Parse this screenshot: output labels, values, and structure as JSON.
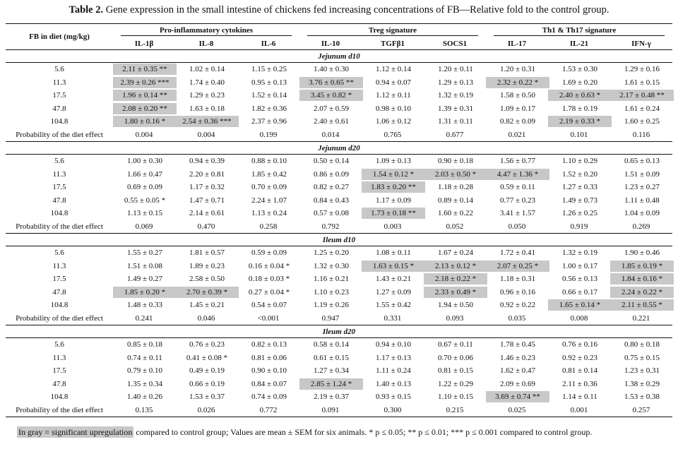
{
  "caption": {
    "label": "Table 2.",
    "text": " Gene expression in the small intestine of chickens fed increasing concentrations of FB—Relative fold to the control group."
  },
  "header": {
    "row_label": "FB in diet (mg/kg)",
    "groups": [
      "Pro-inflammatory cytokines",
      "Treg signature",
      "Th1 & Th17 signature"
    ],
    "genes": [
      "IL-1β",
      "IL-8",
      "IL-6",
      "IL-10",
      "TGFβ1",
      "SOCS1",
      "IL-17",
      "IL-21",
      "IFN-γ"
    ]
  },
  "sections": [
    {
      "title": "Jejunum d10",
      "rows": [
        {
          "dose": "5.6",
          "cells": [
            [
              "2.11 ± 0.35 **",
              true
            ],
            [
              "1.02 ± 0.14",
              false
            ],
            [
              "1.15 ± 0.25",
              false
            ],
            [
              "1.40 ± 0.30",
              false
            ],
            [
              "1.12 ± 0.14",
              false
            ],
            [
              "1.20 ± 0.11",
              false
            ],
            [
              "1.20 ± 0.31",
              false
            ],
            [
              "1.53 ± 0.30",
              false
            ],
            [
              "1.29 ± 0.16",
              false
            ]
          ]
        },
        {
          "dose": "11.3",
          "cells": [
            [
              "2.39 ± 0.26 ***",
              true
            ],
            [
              "1.74 ± 0.40",
              false
            ],
            [
              "0.95 ± 0.13",
              false
            ],
            [
              "3.76 ± 0.65 **",
              true
            ],
            [
              "0.94 ± 0.07",
              false
            ],
            [
              "1.29 ± 0.13",
              false
            ],
            [
              "2.32 ± 0.22 *",
              true
            ],
            [
              "1.69 ± 0.20",
              false
            ],
            [
              "1.61 ± 0.15",
              false
            ]
          ]
        },
        {
          "dose": "17.5",
          "cells": [
            [
              "1.96 ± 0.14 **",
              true
            ],
            [
              "1.29 ± 0.23",
              false
            ],
            [
              "1.52 ± 0.14",
              false
            ],
            [
              "3.45 ± 0.82 *",
              true
            ],
            [
              "1.12 ± 0.11",
              false
            ],
            [
              "1.32 ± 0.19",
              false
            ],
            [
              "1.58 ± 0.50",
              false
            ],
            [
              "2.40 ± 0.63 *",
              true
            ],
            [
              "2.17 ± 0.48 **",
              true
            ]
          ]
        },
        {
          "dose": "47.8",
          "cells": [
            [
              "2.08 ± 0.20 **",
              true
            ],
            [
              "1.63 ± 0.18",
              false
            ],
            [
              "1.82 ± 0.36",
              false
            ],
            [
              "2.07 ± 0.59",
              false
            ],
            [
              "0.98 ± 0.10",
              false
            ],
            [
              "1.39 ± 0.31",
              false
            ],
            [
              "1.09 ± 0.17",
              false
            ],
            [
              "1.78 ± 0.19",
              false
            ],
            [
              "1.61 ± 0.24",
              false
            ]
          ]
        },
        {
          "dose": "104.8",
          "cells": [
            [
              "1.80 ± 0.16 *",
              true
            ],
            [
              "2.54 ± 0.36 ***",
              true
            ],
            [
              "2.37 ± 0.96",
              false
            ],
            [
              "2.40 ± 0.61",
              false
            ],
            [
              "1.06 ± 0.12",
              false
            ],
            [
              "1.31 ± 0.11",
              false
            ],
            [
              "0.82 ± 0.09",
              false
            ],
            [
              "2.19 ± 0.33 *",
              true
            ],
            [
              "1.60 ± 0.25",
              false
            ]
          ]
        }
      ],
      "prob_label": "Probability of the diet effect",
      "prob": [
        "0.004",
        "0.004",
        "0.199",
        "0.014",
        "0.765",
        "0.677",
        "0.021",
        "0.101",
        "0.116"
      ]
    },
    {
      "title": "Jejunum d20",
      "rows": [
        {
          "dose": "5.6",
          "cells": [
            [
              "1.00 ± 0.30",
              false
            ],
            [
              "0.94 ± 0.39",
              false
            ],
            [
              "0.88 ± 0.10",
              false
            ],
            [
              "0.50 ± 0.14",
              false
            ],
            [
              "1.09 ± 0.13",
              false
            ],
            [
              "0.90 ± 0.18",
              false
            ],
            [
              "1.56 ± 0.77",
              false
            ],
            [
              "1.10 ± 0.29",
              false
            ],
            [
              "0.65 ± 0.13",
              false
            ]
          ]
        },
        {
          "dose": "11.3",
          "cells": [
            [
              "1.66 ± 0.47",
              false
            ],
            [
              "2.20 ± 0.81",
              false
            ],
            [
              "1.85 ± 0.42",
              false
            ],
            [
              "0.86 ± 0.09",
              false
            ],
            [
              "1.54 ± 0.12 *",
              true
            ],
            [
              "2.03 ± 0.50 *",
              true
            ],
            [
              "4.47 ± 1.36 *",
              true
            ],
            [
              "1.52 ± 0.20",
              false
            ],
            [
              "1.51 ± 0.09",
              false
            ]
          ]
        },
        {
          "dose": "17.5",
          "cells": [
            [
              "0.69 ± 0.09",
              false
            ],
            [
              "1.17 ± 0.32",
              false
            ],
            [
              "0.70 ± 0.09",
              false
            ],
            [
              "0.82 ± 0.27",
              false
            ],
            [
              "1.83 ± 0.20 **",
              true
            ],
            [
              "1.18 ± 0.28",
              false
            ],
            [
              "0.59 ± 0.11",
              false
            ],
            [
              "1.27 ± 0.33",
              false
            ],
            [
              "1.23 ± 0.27",
              false
            ]
          ]
        },
        {
          "dose": "47.8",
          "cells": [
            [
              "0.55 ± 0.05 *",
              false
            ],
            [
              "1.47 ± 0.71",
              false
            ],
            [
              "2.24 ± 1.07",
              false
            ],
            [
              "0.84 ± 0.43",
              false
            ],
            [
              "1.17 ± 0.09",
              false
            ],
            [
              "0.89 ± 0.14",
              false
            ],
            [
              "0.77 ± 0.23",
              false
            ],
            [
              "1.49 ± 0.73",
              false
            ],
            [
              "1.11 ± 0.48",
              false
            ]
          ]
        },
        {
          "dose": "104.8",
          "cells": [
            [
              "1.13 ± 0.15",
              false
            ],
            [
              "2.14 ± 0.61",
              false
            ],
            [
              "1.13 ± 0.24",
              false
            ],
            [
              "0.57 ± 0.08",
              false
            ],
            [
              "1.73 ± 0.18 **",
              true
            ],
            [
              "1.60 ± 0.22",
              false
            ],
            [
              "3.41 ± 1.57",
              false
            ],
            [
              "1.26 ± 0.25",
              false
            ],
            [
              "1.04 ± 0.09",
              false
            ]
          ]
        }
      ],
      "prob_label": "Probability of the diet effect",
      "prob": [
        "0.069",
        "0.470",
        "0.258",
        "0.792",
        "0.003",
        "0.052",
        "0.050",
        "0.919",
        "0.269"
      ]
    },
    {
      "title": "Ileum d10",
      "rows": [
        {
          "dose": "5.6",
          "cells": [
            [
              "1.55 ± 0.27",
              false
            ],
            [
              "1.81 ± 0.57",
              false
            ],
            [
              "0.59 ± 0.09",
              false
            ],
            [
              "1.25 ± 0.20",
              false
            ],
            [
              "1.08 ± 0.11",
              false
            ],
            [
              "1.67 ± 0.24",
              false
            ],
            [
              "1.72 ± 0.41",
              false
            ],
            [
              "1.32 ± 0.19",
              false
            ],
            [
              "1.90 ± 0.46",
              false
            ]
          ]
        },
        {
          "dose": "11.3",
          "cells": [
            [
              "1.51 ± 0.08",
              false
            ],
            [
              "1.89 ± 0.23",
              false
            ],
            [
              "0.16 ± 0.04 *",
              false
            ],
            [
              "1.32 ± 0.30",
              false
            ],
            [
              "1.63 ± 0.15 *",
              true
            ],
            [
              "2.13 ± 0.12 *",
              true
            ],
            [
              "2.07 ± 0.25 *",
              true
            ],
            [
              "1.00 ± 0.17",
              false
            ],
            [
              "1.85 ± 0.19 *",
              true
            ]
          ]
        },
        {
          "dose": "17.5",
          "cells": [
            [
              "1.49 ± 0.27",
              false
            ],
            [
              "2.58 ± 0.50",
              false
            ],
            [
              "0.18 ± 0.03 *",
              false
            ],
            [
              "1.16 ± 0.21",
              false
            ],
            [
              "1.43 ± 0.21",
              false
            ],
            [
              "2.18 ± 0.22 *",
              true
            ],
            [
              "1.18 ± 0.31",
              false
            ],
            [
              "0.56 ± 0.13",
              false
            ],
            [
              "1.84 ± 0.16 *",
              true
            ]
          ]
        },
        {
          "dose": "47.8",
          "cells": [
            [
              "1.85 ± 0.20 *",
              true
            ],
            [
              "2.70 ± 0.39 *",
              true
            ],
            [
              "0.27 ± 0.04 *",
              false
            ],
            [
              "1.10 ± 0.23",
              false
            ],
            [
              "1.27 ± 0.09",
              false
            ],
            [
              "2.33 ± 0.49 *",
              true
            ],
            [
              "0.96 ± 0.16",
              false
            ],
            [
              "0.66 ± 0.17",
              false
            ],
            [
              "2.24 ± 0.22 *",
              true
            ]
          ]
        },
        {
          "dose": "104.8",
          "cells": [
            [
              "1.48 ± 0.33",
              false
            ],
            [
              "1.45 ± 0.21",
              false
            ],
            [
              "0.54 ± 0.07",
              false
            ],
            [
              "1.19 ± 0.26",
              false
            ],
            [
              "1.55 ± 0.42",
              false
            ],
            [
              "1.94 ± 0.50",
              false
            ],
            [
              "0.92 ± 0.22",
              false
            ],
            [
              "1.65 ± 0.14 *",
              true
            ],
            [
              "2.11 ± 0.55 *",
              true
            ]
          ]
        }
      ],
      "prob_label": "Probability of the diet effect",
      "prob": [
        "0.241",
        "0.046",
        "<0.001",
        "0.947",
        "0.331",
        "0.093",
        "0.035",
        "0.008",
        "0.221"
      ]
    },
    {
      "title": "Ileum d20",
      "rows": [
        {
          "dose": "5.6",
          "cells": [
            [
              "0.85 ± 0.18",
              false
            ],
            [
              "0.76 ± 0.23",
              false
            ],
            [
              "0.82 ± 0.13",
              false
            ],
            [
              "0.58 ± 0.14",
              false
            ],
            [
              "0.94 ± 0.10",
              false
            ],
            [
              "0.67 ± 0.11",
              false
            ],
            [
              "1.78 ± 0.45",
              false
            ],
            [
              "0.76 ± 0.16",
              false
            ],
            [
              "0.80 ± 0.18",
              false
            ]
          ]
        },
        {
          "dose": "11.3",
          "cells": [
            [
              "0.74 ± 0.11",
              false
            ],
            [
              "0.41 ± 0.08 *",
              false
            ],
            [
              "0.81 ± 0.06",
              false
            ],
            [
              "0.61 ± 0.15",
              false
            ],
            [
              "1.17 ± 0.13",
              false
            ],
            [
              "0.70 ± 0.06",
              false
            ],
            [
              "1.46 ± 0.23",
              false
            ],
            [
              "0.92 ± 0.23",
              false
            ],
            [
              "0.75 ± 0.15",
              false
            ]
          ]
        },
        {
          "dose": "17.5",
          "cells": [
            [
              "0.79 ± 0.10",
              false
            ],
            [
              "0.49 ± 0.19",
              false
            ],
            [
              "0.90 ± 0.10",
              false
            ],
            [
              "1.27 ± 0.34",
              false
            ],
            [
              "1.11 ± 0.24",
              false
            ],
            [
              "0.81 ± 0.15",
              false
            ],
            [
              "1.62 ± 0.47",
              false
            ],
            [
              "0.81 ± 0.14",
              false
            ],
            [
              "1.23 ± 0.31",
              false
            ]
          ]
        },
        {
          "dose": "47.8",
          "cells": [
            [
              "1.35 ± 0.34",
              false
            ],
            [
              "0.66 ± 0.19",
              false
            ],
            [
              "0.84 ± 0.07",
              false
            ],
            [
              "2.85 ± 1.24 *",
              true
            ],
            [
              "1.40 ± 0.13",
              false
            ],
            [
              "1.22 ± 0.29",
              false
            ],
            [
              "2.09 ± 0.69",
              false
            ],
            [
              "2.11 ± 0.36",
              false
            ],
            [
              "1.38 ± 0.29",
              false
            ]
          ]
        },
        {
          "dose": "104.8",
          "cells": [
            [
              "1.40 ± 0.26",
              false
            ],
            [
              "1.53 ± 0.37",
              false
            ],
            [
              "0.74 ± 0.09",
              false
            ],
            [
              "2.19 ± 0.37",
              false
            ],
            [
              "0.93 ± 0.15",
              false
            ],
            [
              "1.10 ± 0.15",
              false
            ],
            [
              "3.69 ± 0.74 **",
              true
            ],
            [
              "1.14 ± 0.11",
              false
            ],
            [
              "1.53 ± 0.38",
              false
            ]
          ]
        }
      ],
      "prob_label": "Probability of the diet effect",
      "prob": [
        "0.135",
        "0.026",
        "0.772",
        "0.091",
        "0.300",
        "0.215",
        "0.025",
        "0.001",
        "0.257"
      ]
    }
  ],
  "footnote": {
    "gray_text": "In gray = significant upregulation",
    "rest": " compared to control group; Values are mean ± SEM for six animals. * p ≤ 0.05; ** p ≤ 0.01; *** p ≤ 0.001 compared to control group."
  },
  "colors": {
    "highlight": "#c8c8c8",
    "rule": "#111111"
  }
}
